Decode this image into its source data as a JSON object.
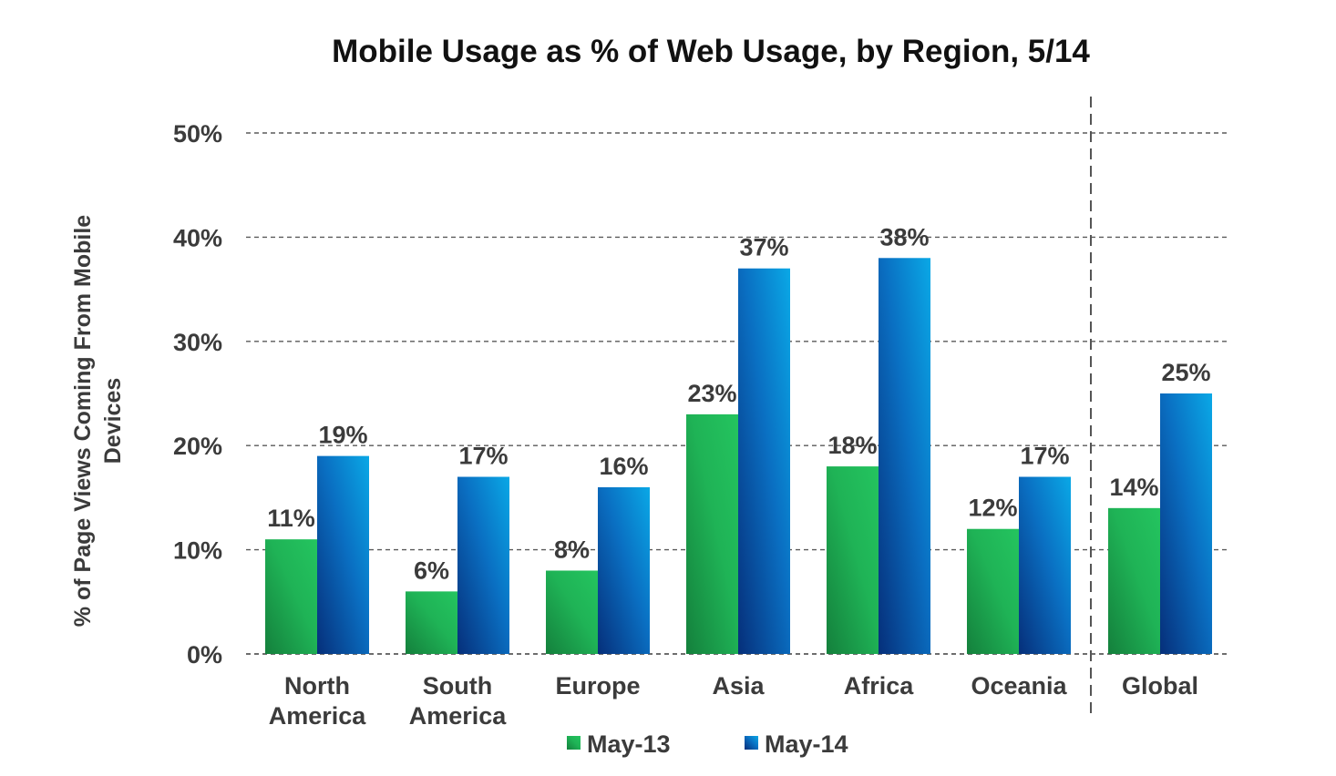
{
  "chart_data": {
    "type": "bar",
    "title": "Mobile Usage as % of Web Usage, by Region, 5/14",
    "ylabel": "% of Page Views Coming From Mobile Devices",
    "ylabel_lines": [
      "% of Page Views Coming From Mobile",
      "Devices"
    ],
    "xlabel": "",
    "ylim": [
      0,
      50
    ],
    "yticks": [
      0,
      10,
      20,
      30,
      40,
      50
    ],
    "ytick_labels": [
      "0%",
      "10%",
      "20%",
      "30%",
      "40%",
      "50%"
    ],
    "grid": true,
    "legend_position": "bottom-center",
    "categories": [
      "North America",
      "South America",
      "Europe",
      "Asia",
      "Africa",
      "Oceania",
      "Global"
    ],
    "category_lines": [
      [
        "North",
        "America"
      ],
      [
        "South",
        "America"
      ],
      [
        "Europe"
      ],
      [
        "Asia"
      ],
      [
        "Africa"
      ],
      [
        "Oceania"
      ],
      [
        "Global"
      ]
    ],
    "separator_before": "Global",
    "series": [
      {
        "name": "May-13",
        "color": "#1fb356",
        "color_dark": "#14803c",
        "values": [
          11,
          6,
          8,
          23,
          18,
          12,
          14
        ],
        "labels": [
          "11%",
          "6%",
          "8%",
          "23%",
          "18%",
          "12%",
          "14%"
        ]
      },
      {
        "name": "May-14",
        "color": "#0aa3e3",
        "color_dark": "#062f7a",
        "values": [
          19,
          17,
          16,
          37,
          38,
          17,
          25
        ],
        "labels": [
          "19%",
          "17%",
          "16%",
          "37%",
          "38%",
          "17%",
          "25%"
        ]
      }
    ]
  }
}
